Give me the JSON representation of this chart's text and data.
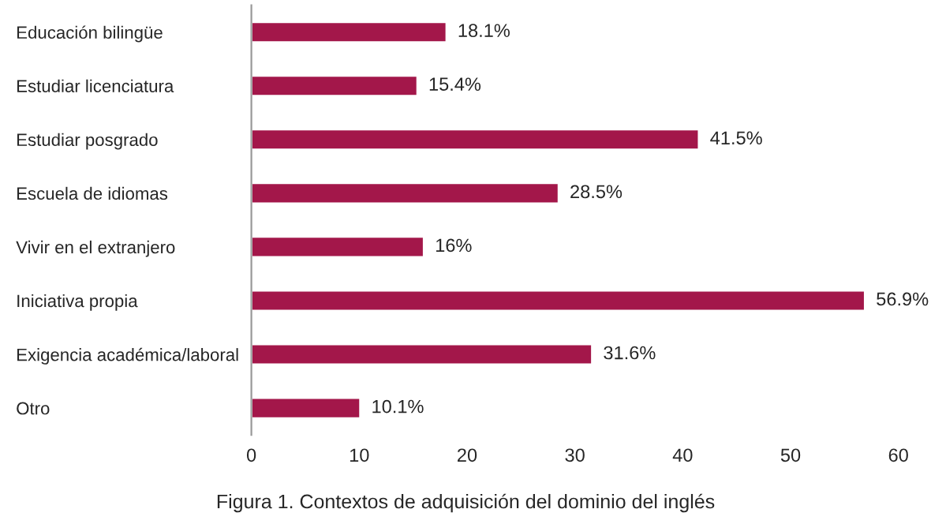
{
  "chart_data": {
    "type": "bar",
    "orientation": "horizontal",
    "categories": [
      "Educación bilingüe",
      "Estudiar licenciatura",
      "Estudiar posgrado",
      "Escuela de idiomas",
      "Vivir en el extranjero",
      "Iniciativa propia",
      "Exigencia académica/laboral",
      "Otro"
    ],
    "values": [
      18.1,
      15.4,
      41.5,
      28.5,
      16,
      56.9,
      31.6,
      10.1
    ],
    "value_labels": [
      "18.1%",
      "15.4%",
      "41.5%",
      "28.5%",
      "16%",
      "56.9%",
      "31.6%",
      "10.1%"
    ],
    "color": "#a3174a",
    "xlim": [
      0,
      60
    ],
    "xticks": [
      0,
      10,
      20,
      30,
      40,
      50,
      60
    ],
    "annotations": [
      "Figura 1. Contextos de adquisición del dominio del inglés"
    ],
    "grid": false,
    "legend": false
  }
}
